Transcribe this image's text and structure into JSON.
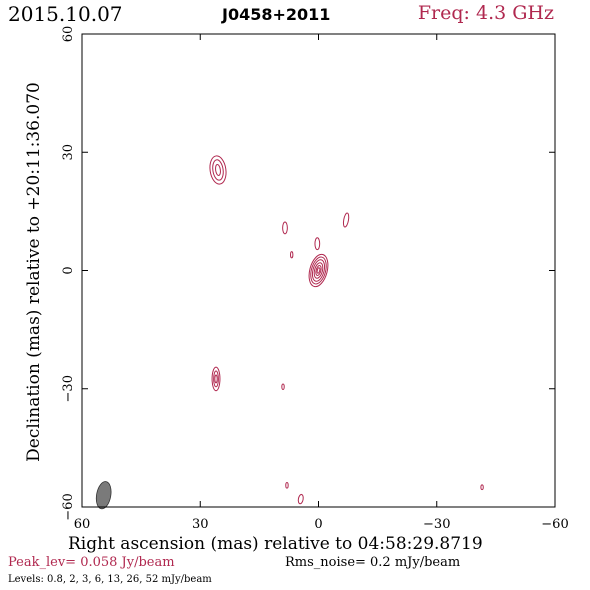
{
  "header": {
    "date": "2015.10.07",
    "source": "J0458+2011",
    "freq_label": "Freq:",
    "freq_value": "4.3 GHz"
  },
  "colors": {
    "contour": "#b0284f",
    "beam": "#7a7a7a",
    "frame": "#000000"
  },
  "footer": {
    "peak": "Peak_lev=  0.058 Jy/beam",
    "rms": "Rms_noise=  0.2 mJy/beam",
    "levels": "Levels: 0.8,  2,  3,  6,  13,  26,  52 mJy/beam"
  },
  "chart_data": {
    "type": "contour",
    "xlabel": "Right ascension (mas) relative to 04:58:29.8719",
    "ylabel": "Declination (mas) relative to +20:11:36.070",
    "xlim": [
      60,
      -60
    ],
    "ylim": [
      -60,
      60
    ],
    "xticks": [
      60,
      30,
      0,
      -30,
      -60
    ],
    "yticks": [
      -60,
      -30,
      0,
      30,
      60
    ],
    "xtick_labels": [
      "60",
      "30",
      "0",
      "−30",
      "−60"
    ],
    "ytick_labels": [
      "−60",
      "−30",
      "0",
      "30",
      "60"
    ],
    "levels_mJy": [
      0.8,
      2,
      3,
      6,
      13,
      26,
      52
    ],
    "peak_Jy_per_beam": 0.058,
    "rms_mJy_per_beam": 0.2,
    "beam": {
      "x": 54.5,
      "y": -57,
      "major": 3.5,
      "minor": 1.8,
      "pa_deg": 10
    },
    "components": [
      {
        "name": "core",
        "x": 0.0,
        "y": 0.0,
        "ellipses": [
          {
            "rx": 2.2,
            "ry": 4.2,
            "rot": 15
          },
          {
            "rx": 1.8,
            "ry": 3.5,
            "rot": 15
          },
          {
            "rx": 1.4,
            "ry": 2.8,
            "rot": 15
          },
          {
            "rx": 1.0,
            "ry": 2.0,
            "rot": 15
          },
          {
            "rx": 0.6,
            "ry": 1.3,
            "rot": 15
          },
          {
            "rx": 0.3,
            "ry": 0.7,
            "rot": 15
          }
        ]
      },
      {
        "name": "jet-knot",
        "x": 0.3,
        "y": 6.8,
        "ellipses": [
          {
            "rx": 0.6,
            "ry": 1.5,
            "rot": 0
          }
        ]
      },
      {
        "name": "blob-north",
        "x": 25.5,
        "y": 25.5,
        "ellipses": [
          {
            "rx": 2.0,
            "ry": 3.6,
            "rot": -8
          },
          {
            "rx": 1.3,
            "ry": 2.6,
            "rot": -8
          },
          {
            "rx": 0.6,
            "ry": 1.4,
            "rot": -8
          }
        ]
      },
      {
        "name": "blob-south",
        "x": 26.0,
        "y": -27.5,
        "ellipses": [
          {
            "rx": 1.0,
            "ry": 3.0,
            "rot": 0
          },
          {
            "rx": 0.6,
            "ry": 2.0,
            "rot": 0
          },
          {
            "rx": 0.3,
            "ry": 1.0,
            "rot": 0
          }
        ]
      },
      {
        "name": "spot-a",
        "x": 8.5,
        "y": 10.8,
        "ellipses": [
          {
            "rx": 0.6,
            "ry": 1.5,
            "rot": 0
          }
        ]
      },
      {
        "name": "spot-b",
        "x": -7.0,
        "y": 12.8,
        "ellipses": [
          {
            "rx": 0.6,
            "ry": 1.8,
            "rot": 10
          }
        ]
      },
      {
        "name": "spot-c",
        "x": 6.8,
        "y": 4.0,
        "ellipses": [
          {
            "rx": 0.3,
            "ry": 0.8,
            "rot": 0
          }
        ]
      },
      {
        "name": "spot-d",
        "x": 9.0,
        "y": -29.5,
        "ellipses": [
          {
            "rx": 0.3,
            "ry": 0.7,
            "rot": 0
          }
        ]
      },
      {
        "name": "spot-e",
        "x": 8.0,
        "y": -54.5,
        "ellipses": [
          {
            "rx": 0.3,
            "ry": 0.7,
            "rot": 0
          }
        ]
      },
      {
        "name": "spot-f",
        "x": 4.5,
        "y": -58.0,
        "ellipses": [
          {
            "rx": 0.6,
            "ry": 1.2,
            "rot": 10
          }
        ]
      },
      {
        "name": "spot-g",
        "x": -41.5,
        "y": -55.0,
        "ellipses": [
          {
            "rx": 0.3,
            "ry": 0.6,
            "rot": 0
          }
        ]
      }
    ]
  }
}
